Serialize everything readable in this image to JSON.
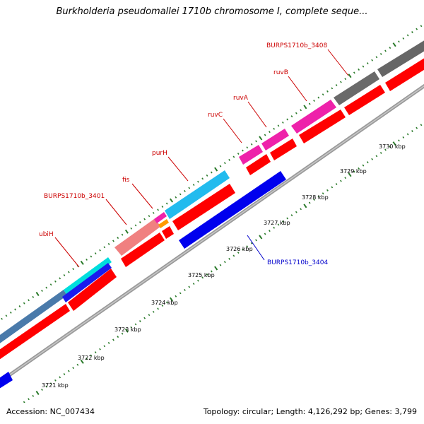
{
  "title": "Burkholderia pseudomallei 1710b chromosome I, complete seque...",
  "footer": {
    "accession": "Accession: NC_007434",
    "summary": "Topology: circular; Length: 4,126,292 bp; Genes: 3,799"
  },
  "colors": {
    "backbone": "#808080",
    "tick": "#2a7a2a",
    "cds_forward": "#ff0000",
    "label_forward": "#cc0000",
    "label_reverse": "#0000cc"
  },
  "tick_labels": [
    "3721 kbp",
    "3722 kbp",
    "3723 kbp",
    "3724 kbp",
    "3725 kbp",
    "3726 kbp",
    "3727 kbp",
    "3728 kbp",
    "3729 kbp",
    "3730 kbp"
  ],
  "gene_labels": [
    {
      "text": "ubiH",
      "strand": "forward"
    },
    {
      "text": "BURPS1710b_3401",
      "strand": "forward"
    },
    {
      "text": "fis",
      "strand": "forward"
    },
    {
      "text": "purH",
      "strand": "forward"
    },
    {
      "text": "ruvC",
      "strand": "forward"
    },
    {
      "text": "ruvA",
      "strand": "forward"
    },
    {
      "text": "ruvB",
      "strand": "forward"
    },
    {
      "text": "BURPS1710b_3408",
      "strand": "forward"
    },
    {
      "text": "BURPS1710b_3404",
      "strand": "reverse"
    }
  ],
  "feature_colors": [
    "#4a7aaa",
    "#00dddd",
    "#1a1aee",
    "#f08080",
    "#ee22aa",
    "#ff9900",
    "#22bbee",
    "#ee22aa",
    "#ee22aa",
    "#ee22aa",
    "#6a6a6a",
    "#666666",
    "#0000ee"
  ]
}
